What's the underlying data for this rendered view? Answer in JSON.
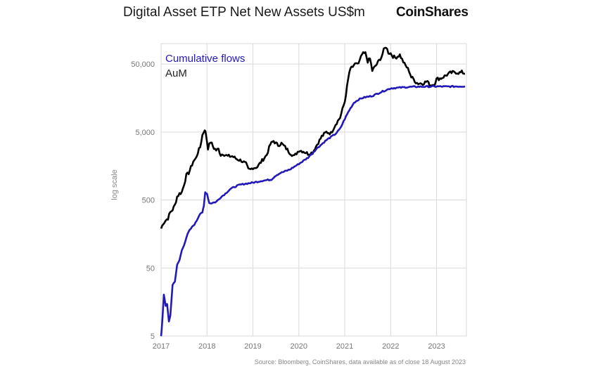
{
  "header": {
    "title": "Digital Asset ETP Net New Assets US$m",
    "brand": "CoinShares"
  },
  "footer": {
    "source": "Source: Bloomberg, CoinShares, data available as of close 18 August 2023"
  },
  "colors": {
    "aum": "#000000",
    "cumulative": "#2219b8",
    "grid": "#d9d9d9",
    "tick": "#777777"
  },
  "chart_data": {
    "type": "line",
    "title": "Digital Asset ETP Net New Assets US$m",
    "xlabel": "",
    "ylabel": "log scale",
    "yscale": "log",
    "ylim": [
      5,
      100000
    ],
    "xlim": [
      2017.0,
      2023.65
    ],
    "yticks": [
      5,
      50,
      500,
      5000,
      50000
    ],
    "ytick_labels": [
      "5",
      "50",
      "500",
      "5,000",
      "50,000"
    ],
    "xticks": [
      2017,
      2018,
      2019,
      2020,
      2021,
      2022,
      2023
    ],
    "xtick_labels": [
      "2017",
      "2018",
      "2019",
      "2020",
      "2021",
      "2022",
      "2023"
    ],
    "legend": [
      "Cumulative flows",
      "AuM"
    ],
    "legend_position": "top-left",
    "series": [
      {
        "name": "Cumulative flows",
        "x": [
          2017.0,
          2017.03,
          2017.06,
          2017.1,
          2017.13,
          2017.17,
          2017.2,
          2017.25,
          2017.3,
          2017.35,
          2017.4,
          2017.45,
          2017.5,
          2017.55,
          2017.6,
          2017.65,
          2017.7,
          2017.75,
          2017.8,
          2017.85,
          2017.9,
          2017.93,
          2017.96,
          2018.0,
          2018.05,
          2018.1,
          2018.2,
          2018.3,
          2018.4,
          2018.5,
          2018.6,
          2018.7,
          2018.8,
          2018.9,
          2019.0,
          2019.2,
          2019.4,
          2019.5,
          2019.6,
          2019.8,
          2020.0,
          2020.2,
          2020.4,
          2020.6,
          2020.8,
          2020.9,
          2021.0,
          2021.1,
          2021.2,
          2021.3,
          2021.4,
          2021.6,
          2021.8,
          2022.0,
          2022.2,
          2022.4,
          2022.6,
          2022.8,
          2023.0,
          2023.2,
          2023.4,
          2023.62
        ],
        "values": [
          5,
          9,
          20,
          14,
          15,
          8,
          10,
          28,
          32,
          55,
          65,
          90,
          110,
          140,
          170,
          190,
          210,
          230,
          270,
          320,
          330,
          400,
          650,
          620,
          450,
          450,
          470,
          550,
          620,
          720,
          780,
          830,
          860,
          880,
          900,
          960,
          1000,
          1150,
          1250,
          1400,
          1700,
          2100,
          2900,
          3800,
          4700,
          5600,
          7800,
          10500,
          13500,
          15000,
          16000,
          17000,
          19500,
          22000,
          22500,
          23000,
          23200,
          23300,
          23400,
          23300,
          23400,
          23500
        ]
      },
      {
        "name": "AuM",
        "x": [
          2017.0,
          2017.05,
          2017.1,
          2017.15,
          2017.2,
          2017.25,
          2017.3,
          2017.35,
          2017.4,
          2017.45,
          2017.5,
          2017.55,
          2017.6,
          2017.65,
          2017.7,
          2017.75,
          2017.8,
          2017.85,
          2017.9,
          2017.95,
          2017.98,
          2018.02,
          2018.08,
          2018.15,
          2018.2,
          2018.25,
          2018.3,
          2018.35,
          2018.45,
          2018.55,
          2018.65,
          2018.75,
          2018.85,
          2018.9,
          2018.95,
          2019.0,
          2019.05,
          2019.1,
          2019.2,
          2019.3,
          2019.38,
          2019.45,
          2019.5,
          2019.55,
          2019.62,
          2019.7,
          2019.8,
          2019.9,
          2020.0,
          2020.1,
          2020.2,
          2020.3,
          2020.4,
          2020.5,
          2020.6,
          2020.7,
          2020.8,
          2020.9,
          2021.0,
          2021.05,
          2021.1,
          2021.15,
          2021.2,
          2021.25,
          2021.3,
          2021.38,
          2021.45,
          2021.5,
          2021.55,
          2021.6,
          2021.7,
          2021.8,
          2021.85,
          2021.9,
          2021.95,
          2022.0,
          2022.05,
          2022.1,
          2022.2,
          2022.3,
          2022.35,
          2022.4,
          2022.45,
          2022.5,
          2022.55,
          2022.6,
          2022.7,
          2022.8,
          2022.85,
          2022.9,
          2022.95,
          2023.0,
          2023.1,
          2023.2,
          2023.3,
          2023.4,
          2023.5,
          2023.55,
          2023.62
        ],
        "values": [
          190,
          230,
          250,
          270,
          330,
          360,
          420,
          560,
          620,
          650,
          850,
          1150,
          1250,
          1500,
          1850,
          2000,
          2500,
          3000,
          4500,
          5500,
          4500,
          2900,
          3600,
          2900,
          2700,
          2800,
          2300,
          2400,
          2200,
          2200,
          2000,
          1900,
          1700,
          1400,
          1400,
          1500,
          1500,
          1550,
          1900,
          2300,
          3300,
          3700,
          3400,
          3200,
          3400,
          3000,
          2500,
          2200,
          2700,
          2600,
          2400,
          2500,
          3300,
          4300,
          5000,
          4800,
          6500,
          8200,
          14000,
          23000,
          38000,
          45000,
          46000,
          52000,
          50000,
          70000,
          72000,
          55000,
          60000,
          40000,
          50000,
          64000,
          80000,
          90000,
          74000,
          72000,
          65000,
          62000,
          68000,
          50000,
          45000,
          40000,
          32000,
          30000,
          27000,
          26000,
          26000,
          28000,
          24000,
          25000,
          25000,
          30000,
          31000,
          34000,
          37000,
          38000,
          37000,
          38000,
          36000
        ]
      }
    ]
  }
}
